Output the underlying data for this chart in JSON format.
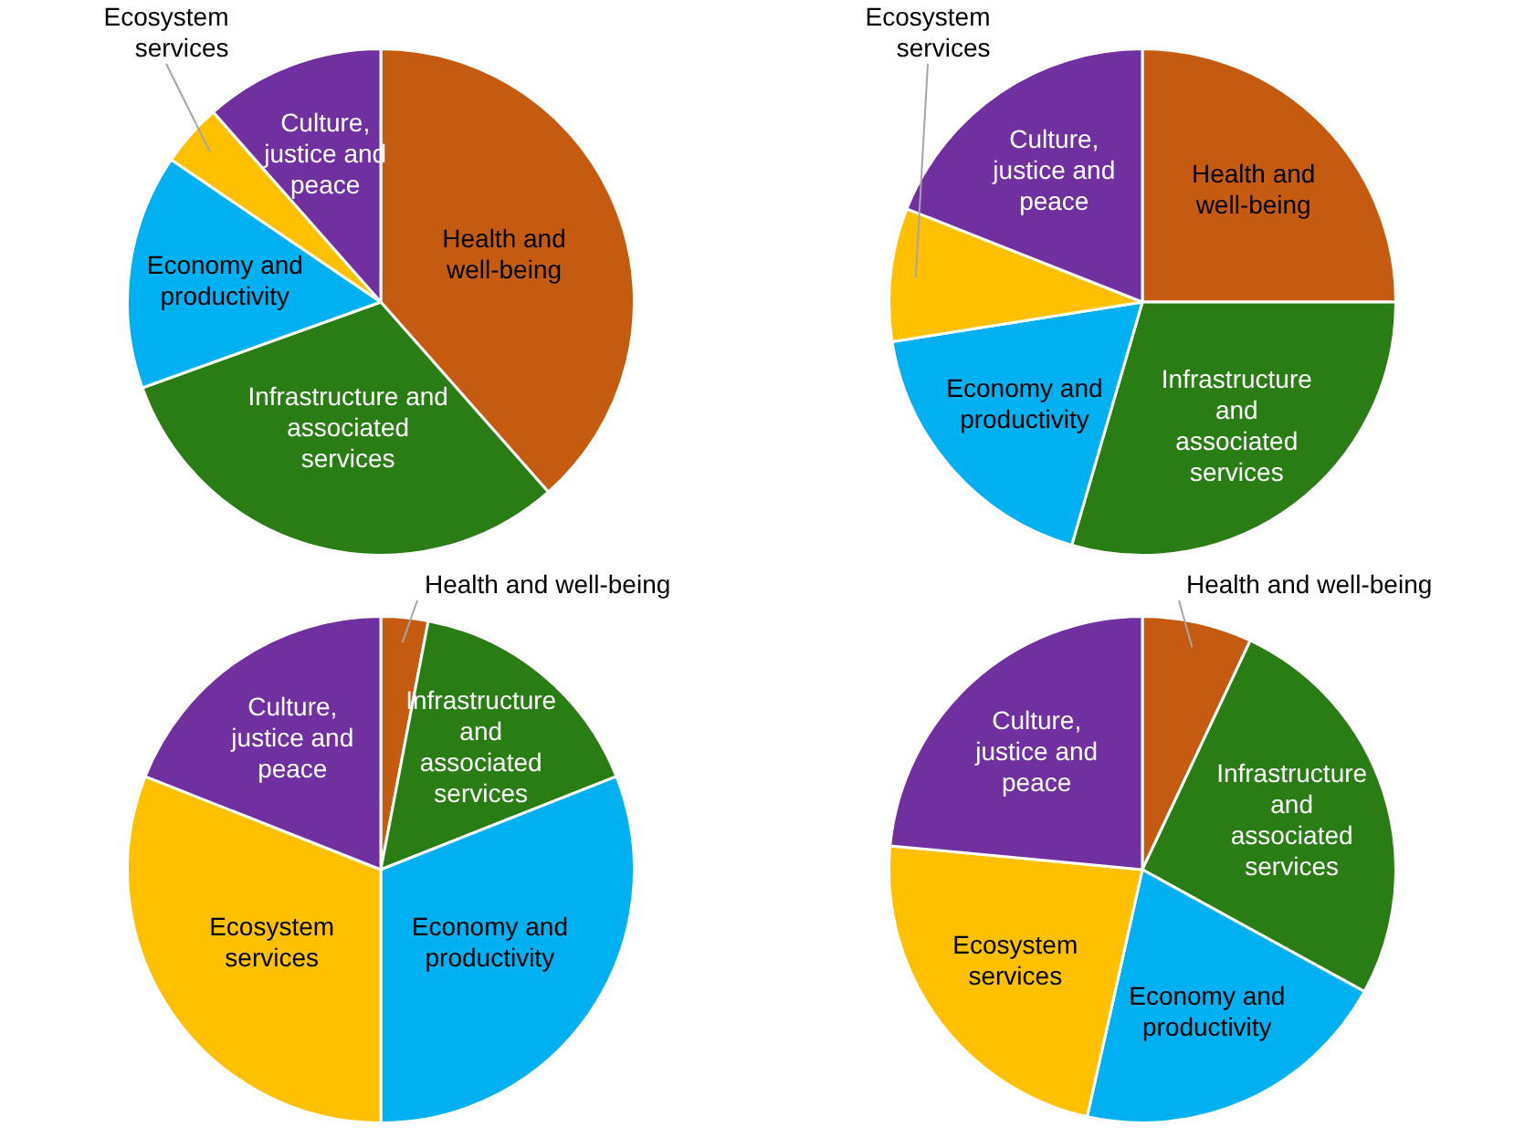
{
  "chart_data": [
    {
      "type": "pie",
      "categories": [
        "Health and well-being",
        "Infrastructure and associated services",
        "Economy and productivity",
        "Ecosystem services",
        "Culture, justice and peace"
      ],
      "values": [
        38.5,
        31,
        15,
        4,
        11.5
      ],
      "colors": [
        "#c55a11",
        "#2a7d14",
        "#00b0f0",
        "#ffc000",
        "#7030a0"
      ],
      "legend": false
    },
    {
      "type": "pie",
      "categories": [
        "Health and well-being",
        "Infrastructure and associated services",
        "Economy and productivity",
        "Ecosystem services",
        "Culture, justice and peace"
      ],
      "values": [
        25,
        29.5,
        18,
        8.5,
        19
      ],
      "colors": [
        "#c55a11",
        "#2a7d14",
        "#00b0f0",
        "#ffc000",
        "#7030a0"
      ],
      "legend": false
    },
    {
      "type": "pie",
      "categories": [
        "Health and well-being",
        "Infrastructure and associated services",
        "Economy and productivity",
        "Ecosystem services",
        "Culture, justice and peace"
      ],
      "values": [
        3,
        16,
        31,
        31,
        19
      ],
      "colors": [
        "#c55a11",
        "#2a7d14",
        "#00b0f0",
        "#ffc000",
        "#7030a0"
      ],
      "legend": false
    },
    {
      "type": "pie",
      "categories": [
        "Health and well-being",
        "Infrastructure and associated services",
        "Economy and productivity",
        "Ecosystem services",
        "Culture, justice and peace"
      ],
      "values": [
        7,
        26,
        20.5,
        23,
        23.5
      ],
      "colors": [
        "#c55a11",
        "#2a7d14",
        "#00b0f0",
        "#ffc000",
        "#7030a0"
      ],
      "legend": false
    }
  ]
}
